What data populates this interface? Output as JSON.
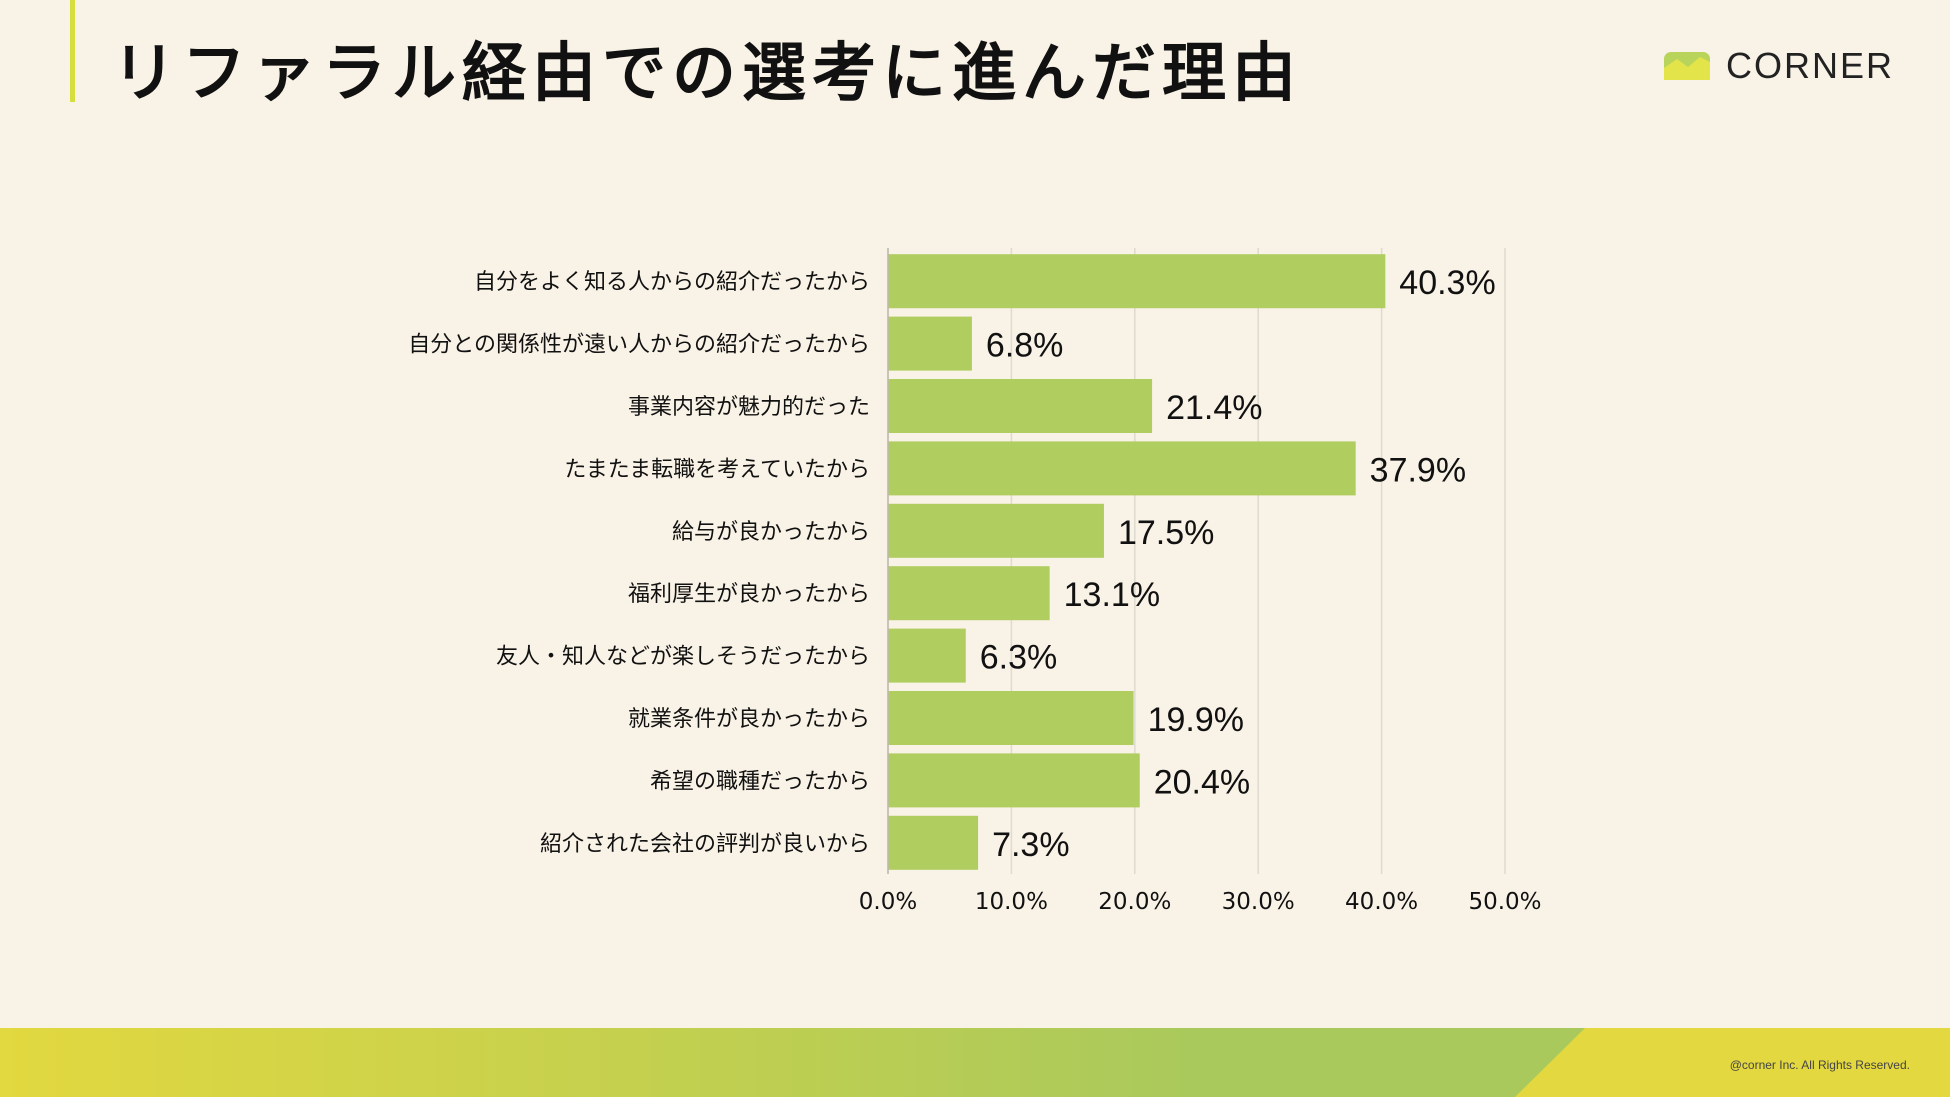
{
  "header": {
    "title": "リファラル経由での選考に進んだ理由",
    "logo_text": "CORNER"
  },
  "footer": {
    "copyright": "@corner Inc. All Rights Reserved."
  },
  "colors": {
    "background": "#f9f2e6",
    "bar": "#b0cd5f",
    "accent_yellow": "#e2d83f",
    "accent_green": "#a9c95c",
    "grid": "#dedad0"
  },
  "chart_data": {
    "type": "bar",
    "orientation": "horizontal",
    "categories": [
      "自分をよく知る人からの紹介だったから",
      "自分との関係性が遠い人からの紹介だったから",
      "事業内容が魅力的だった",
      "たまたま転職を考えていたから",
      "給与が良かったから",
      "福利厚生が良かったから",
      "友人・知人などが楽しそうだったから",
      "就業条件が良かったから",
      "希望の職種だったから",
      "紹介された会社の評判が良いから"
    ],
    "values": [
      40.3,
      6.8,
      21.4,
      37.9,
      17.5,
      13.1,
      6.3,
      19.9,
      20.4,
      7.3
    ],
    "value_labels": [
      "40.3%",
      "6.8%",
      "21.4%",
      "37.9%",
      "17.5%",
      "13.1%",
      "6.3%",
      "19.9%",
      "20.4%",
      "7.3%"
    ],
    "xlim": [
      0,
      50
    ],
    "xticks": [
      0,
      10,
      20,
      30,
      40,
      50
    ],
    "xtick_labels": [
      "0.0%",
      "10.0%",
      "20.0%",
      "30.0%",
      "40.0%",
      "50.0%"
    ],
    "grid": true,
    "legend": false
  }
}
